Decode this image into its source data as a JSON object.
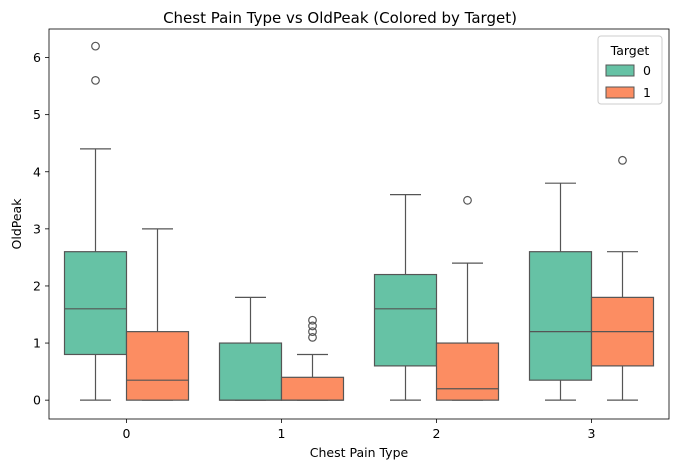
{
  "chart_data": {
    "type": "box",
    "title": "Chest Pain Type vs OldPeak (Colored by Target)",
    "xlabel": "Chest Pain Type",
    "ylabel": "OldPeak",
    "categories": [
      "0",
      "1",
      "2",
      "3"
    ],
    "ylim": [
      -0.33,
      6.5
    ],
    "yticks": [
      0,
      1,
      2,
      3,
      4,
      5,
      6
    ],
    "legend": {
      "title": "Target",
      "placement": "top-right"
    },
    "series": [
      {
        "name": "0",
        "color": "#66c2a5",
        "boxes": [
          {
            "category": "0",
            "whisker_low": 0,
            "q1": 0.8,
            "median": 1.6,
            "q3": 2.6,
            "whisker_high": 4.4,
            "outliers": [
              5.6,
              6.2
            ]
          },
          {
            "category": "1",
            "whisker_low": 0,
            "q1": 0,
            "median": 0,
            "q3": 1.0,
            "whisker_high": 1.8,
            "outliers": []
          },
          {
            "category": "2",
            "whisker_low": 0,
            "q1": 0.6,
            "median": 1.6,
            "q3": 2.2,
            "whisker_high": 3.6,
            "outliers": []
          },
          {
            "category": "3",
            "whisker_low": 0,
            "q1": 0.35,
            "median": 1.2,
            "q3": 2.6,
            "whisker_high": 3.8,
            "outliers": []
          }
        ]
      },
      {
        "name": "1",
        "color": "#fc8d62",
        "boxes": [
          {
            "category": "0",
            "whisker_low": 0,
            "q1": 0,
            "median": 0.35,
            "q3": 1.2,
            "whisker_high": 3.0,
            "outliers": []
          },
          {
            "category": "1",
            "whisker_low": 0,
            "q1": 0,
            "median": 0,
            "q3": 0.4,
            "whisker_high": 0.8,
            "outliers": [
              1.1,
              1.2,
              1.3,
              1.4
            ]
          },
          {
            "category": "2",
            "whisker_low": 0,
            "q1": 0,
            "median": 0.2,
            "q3": 1.0,
            "whisker_high": 2.4,
            "outliers": [
              3.5
            ]
          },
          {
            "category": "3",
            "whisker_low": 0,
            "q1": 0.6,
            "median": 1.2,
            "q3": 1.8,
            "whisker_high": 2.6,
            "outliers": [
              4.2
            ]
          }
        ]
      }
    ],
    "grid": false
  }
}
